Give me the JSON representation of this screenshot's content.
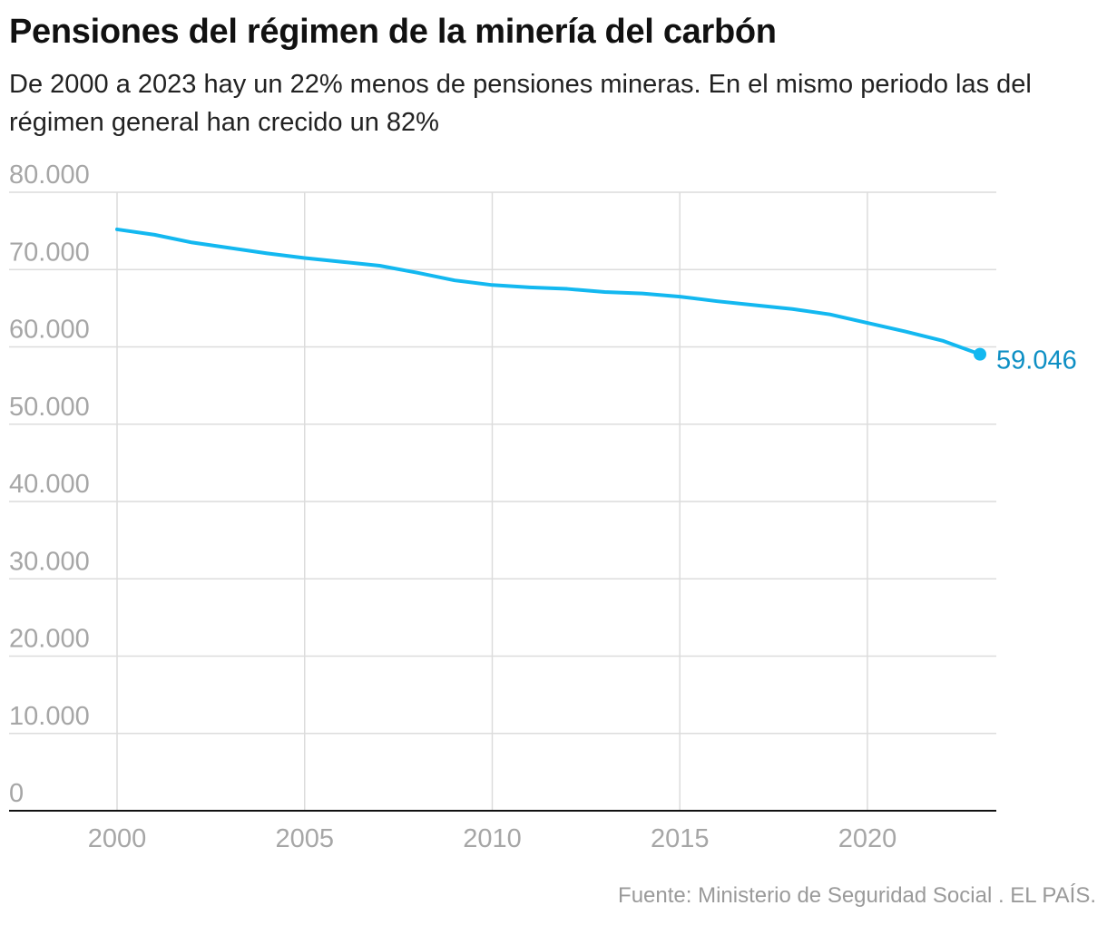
{
  "title": "Pensiones del régimen de la minería del carbón",
  "subtitle": "De 2000 a 2023 hay un 22% menos de pensiones mineras. En el mismo periodo las del régimen general han crecido un 82%",
  "source": "Fuente: Ministerio de Seguridad Social . EL PAÍS.",
  "colors": {
    "line": "#13b8f0",
    "end_label": "#0d8fc4",
    "grid": "#dcdcdc",
    "axis": "#111111",
    "tick_label": "#a6a6a6"
  },
  "chart_data": {
    "type": "line",
    "x": [
      2000,
      2001,
      2002,
      2003,
      2004,
      2005,
      2006,
      2007,
      2008,
      2009,
      2010,
      2011,
      2012,
      2013,
      2014,
      2015,
      2016,
      2017,
      2018,
      2019,
      2020,
      2021,
      2022,
      2023
    ],
    "series": [
      {
        "values": [
          75200,
          74500,
          73500,
          72800,
          72100,
          71500,
          71000,
          70500,
          69600,
          68600,
          68000,
          67700,
          67500,
          67100,
          66900,
          66500,
          65900,
          65400,
          64900,
          64200,
          63100,
          62000,
          60800,
          59046
        ]
      }
    ],
    "end_label": "59.046",
    "xlim": [
      2000,
      2023
    ],
    "ylim": [
      0,
      80000
    ],
    "xticks": [
      2000,
      2005,
      2010,
      2015,
      2020
    ],
    "xtick_labels": [
      "2000",
      "2005",
      "2010",
      "2015",
      "2020"
    ],
    "yticks": [
      0,
      10000,
      20000,
      30000,
      40000,
      50000,
      60000,
      70000,
      80000
    ],
    "ytick_labels": [
      "0",
      "10.000",
      "20.000",
      "30.000",
      "40.000",
      "50.000",
      "60.000",
      "70.000",
      "80.000"
    ],
    "grid": true
  }
}
